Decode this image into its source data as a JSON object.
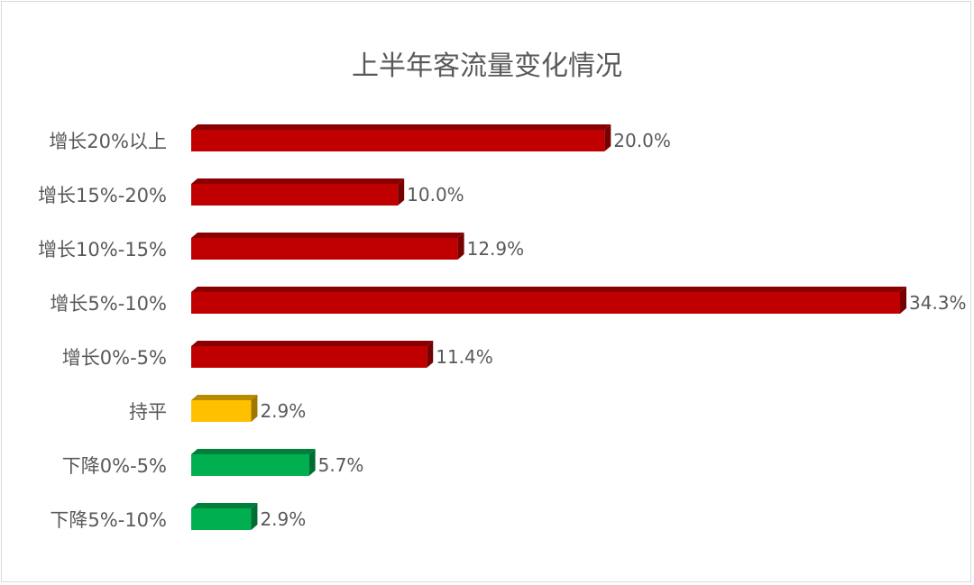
{
  "chart_data": {
    "type": "bar",
    "orientation": "horizontal",
    "style": "3d",
    "title": "上半年客流量变化情况",
    "categories": [
      "增长20%以上",
      "增长15%-20%",
      "增长10%-15%",
      "增长5%-10%",
      "增长0%-5%",
      "持平",
      "下降0%-5%",
      "下降5%-10%"
    ],
    "values": [
      20.0,
      10.0,
      12.9,
      34.3,
      11.4,
      2.9,
      5.7,
      2.9
    ],
    "data_labels": [
      "20.0%",
      "10.0%",
      "12.9%",
      "34.3%",
      "11.4%",
      "2.9%",
      "5.7%",
      "2.9%"
    ],
    "bar_colors": [
      "#C00000",
      "#C00000",
      "#C00000",
      "#C00000",
      "#C00000",
      "#FFC000",
      "#00B050",
      "#00B050"
    ],
    "xlim": [
      0,
      34.3
    ],
    "grid": false,
    "legend": "none",
    "x_axis_visible": false
  }
}
